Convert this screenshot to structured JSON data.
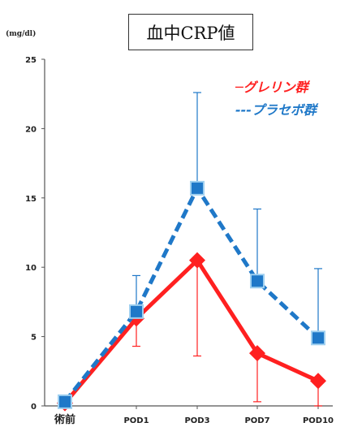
{
  "chart_data": {
    "type": "line",
    "title": "血中CRP値",
    "unit_label": "(mg/dl)",
    "categories": [
      "術前",
      "POD1",
      "POD3",
      "POD7",
      "POD10"
    ],
    "ylim": [
      0,
      25
    ],
    "yticks": [
      0,
      5,
      10,
      15,
      20,
      25
    ],
    "legend_position": "top-right",
    "series": [
      {
        "name": "グレリン群",
        "legend_text": "─グレリン群",
        "color": "#ff2020",
        "line_style": "solid",
        "marker": "diamond",
        "values": [
          0.2,
          6.3,
          10.5,
          3.8,
          1.8
        ],
        "error_upper": [
          0.2,
          6.3,
          10.5,
          3.8,
          1.8
        ],
        "error_lower": [
          0,
          4.3,
          3.6,
          0.3,
          0
        ]
      },
      {
        "name": "プラセボ群",
        "legend_text": "---プラセボ群",
        "color": "#1f78c8",
        "line_style": "dashed",
        "marker": "square",
        "values": [
          0.3,
          6.8,
          15.7,
          9.0,
          4.9
        ],
        "error_upper": [
          0.3,
          9.4,
          22.6,
          14.2,
          9.9
        ],
        "error_lower": [
          0.3,
          6.8,
          15.7,
          9.0,
          4.9
        ]
      }
    ]
  }
}
